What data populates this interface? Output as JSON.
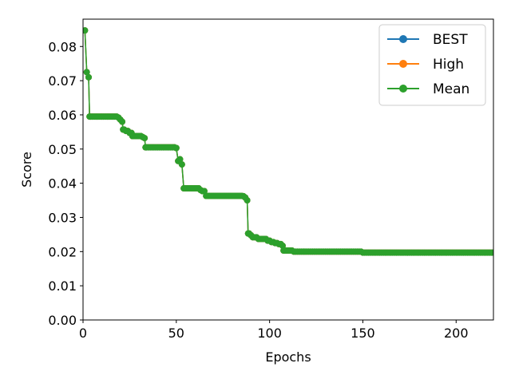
{
  "chart_data": {
    "type": "line",
    "title": "",
    "xlabel": "Epochs",
    "ylabel": "Score",
    "xlim": [
      0,
      220
    ],
    "ylim": [
      0,
      0.088
    ],
    "xticks": [
      0,
      50,
      100,
      150,
      200
    ],
    "yticks": [
      0.0,
      0.01,
      0.02,
      0.03,
      0.04,
      0.05,
      0.06,
      0.07,
      0.08
    ],
    "ytick_labels": [
      "0.00",
      "0.01",
      "0.02",
      "0.03",
      "0.04",
      "0.05",
      "0.06",
      "0.07",
      "0.08"
    ],
    "grid": false,
    "legend_position": "top-right",
    "markers": true,
    "series": [
      {
        "name": "BEST",
        "color": "#1f77b4"
      },
      {
        "name": "High",
        "color": "#ff7f0e"
      },
      {
        "name": "Mean",
        "color": "#2ca02c"
      }
    ],
    "steps": [
      [
        1,
        0.0847
      ],
      [
        2,
        0.0725
      ],
      [
        3,
        0.071
      ],
      [
        3.5,
        0.0595
      ],
      [
        19,
        0.0592
      ],
      [
        20,
        0.0586
      ],
      [
        21,
        0.058
      ],
      [
        21.5,
        0.0557
      ],
      [
        23,
        0.0553
      ],
      [
        25,
        0.0547
      ],
      [
        26.5,
        0.0538
      ],
      [
        32,
        0.0535
      ],
      [
        33,
        0.0532
      ],
      [
        33.5,
        0.0505
      ],
      [
        50,
        0.0503
      ],
      [
        51,
        0.0465
      ],
      [
        52,
        0.047
      ],
      [
        53,
        0.0455
      ],
      [
        54,
        0.0385
      ],
      [
        63,
        0.038
      ],
      [
        64,
        0.0377
      ],
      [
        66,
        0.0363
      ],
      [
        86,
        0.0362
      ],
      [
        87,
        0.0358
      ],
      [
        88,
        0.035
      ],
      [
        88.5,
        0.0253
      ],
      [
        90,
        0.0248
      ],
      [
        91,
        0.0242
      ],
      [
        94,
        0.0237
      ],
      [
        99,
        0.0232
      ],
      [
        101,
        0.0228
      ],
      [
        103,
        0.0225
      ],
      [
        105,
        0.0222
      ],
      [
        107,
        0.0217
      ],
      [
        107.5,
        0.0203
      ],
      [
        113,
        0.02
      ],
      [
        148,
        0.02
      ],
      [
        150,
        0.0197
      ],
      [
        220,
        0.0197
      ]
    ]
  }
}
